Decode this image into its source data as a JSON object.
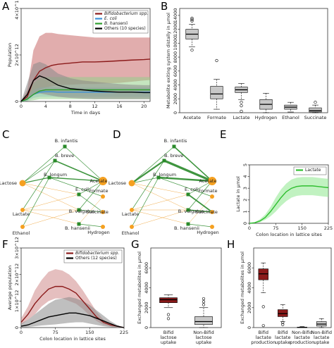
{
  "figure_title": "",
  "chart_data": [
    {
      "id": "A",
      "type": "line",
      "panel_label": "A",
      "xlabel": "Time in days",
      "ylabel": "Population",
      "xlim": [
        0,
        21
      ],
      "ylim": [
        0,
        4000000000000.0
      ],
      "ytick_values": [
        0,
        2000000000000.0,
        4000000000000.0
      ],
      "xticks": [
        "0",
        "4",
        "8",
        "12",
        "16",
        "20"
      ],
      "yticks": [
        "0",
        "2×10^12",
        "4×10^12"
      ],
      "legend": [
        "Bifidobacterium spp.",
        "E. coli",
        "B. hansenii",
        "Others (10 species)"
      ],
      "legend_position": "top-right",
      "colors": [
        "#8b1a1a",
        "#3b8fd8",
        "#2e9e2e",
        "#000000"
      ],
      "band_colors": [
        "#c96a6a",
        "#9ec9ef",
        "#96d08a",
        "#8a8a8a"
      ],
      "x": [
        0,
        1,
        2,
        3,
        4,
        5,
        6,
        8,
        10,
        12,
        14,
        16,
        18,
        20,
        21
      ],
      "series": [
        {
          "name": "Bifidobacterium spp.",
          "mean": [
            0,
            200000000000.0,
            900000000000.0,
            1300000000000.0,
            1450000000000.0,
            1550000000000.0,
            1600000000000.0,
            1650000000000.0,
            1700000000000.0,
            1700000000000.0,
            1720000000000.0,
            1750000000000.0,
            1780000000000.0,
            1800000000000.0,
            1820000000000.0
          ],
          "low": [
            0,
            50000000000.0,
            300000000000.0,
            500000000000.0,
            600000000000.0,
            650000000000.0,
            700000000000.0,
            720000000000.0,
            750000000000.0,
            750000000000.0,
            780000000000.0,
            800000000000.0,
            850000000000.0,
            900000000000.0,
            920000000000.0
          ],
          "high": [
            0,
            500000000000.0,
            2200000000000.0,
            2800000000000.0,
            2950000000000.0,
            2950000000000.0,
            2900000000000.0,
            2850000000000.0,
            2800000000000.0,
            2750000000000.0,
            2750000000000.0,
            2750000000000.0,
            2750000000000.0,
            2750000000000.0,
            2750000000000.0
          ]
        },
        {
          "name": "E. coli",
          "mean": [
            0,
            100000000000.0,
            300000000000.0,
            400000000000.0,
            420000000000.0,
            420000000000.0,
            400000000000.0,
            400000000000.0,
            400000000000.0,
            400000000000.0,
            400000000000.0,
            400000000000.0,
            400000000000.0,
            400000000000.0,
            400000000000.0
          ],
          "low": [
            0,
            20000000000.0,
            150000000000.0,
            200000000000.0,
            200000000000.0,
            200000000000.0,
            200000000000.0,
            200000000000.0,
            200000000000.0,
            200000000000.0,
            200000000000.0,
            200000000000.0,
            200000000000.0,
            200000000000.0,
            200000000000.0
          ],
          "high": [
            0,
            200000000000.0,
            500000000000.0,
            600000000000.0,
            620000000000.0,
            620000000000.0,
            600000000000.0,
            600000000000.0,
            600000000000.0,
            600000000000.0,
            600000000000.0,
            600000000000.0,
            600000000000.0,
            600000000000.0,
            600000000000.0
          ]
        },
        {
          "name": "B. hansenii",
          "mean": [
            0,
            100000000000.0,
            300000000000.0,
            450000000000.0,
            500000000000.0,
            500000000000.0,
            500000000000.0,
            500000000000.0,
            500000000000.0,
            500000000000.0,
            500000000000.0,
            500000000000.0,
            500000000000.0,
            500000000000.0,
            500000000000.0
          ],
          "low": [
            0,
            20000000000.0,
            50000000000.0,
            100000000000.0,
            100000000000.0,
            100000000000.0,
            100000000000.0,
            100000000000.0,
            100000000000.0,
            100000000000.0,
            100000000000.0,
            100000000000.0,
            100000000000.0,
            100000000000.0,
            100000000000.0
          ],
          "high": [
            0,
            300000000000.0,
            800000000000.0,
            1000000000000.0,
            1050000000000.0,
            1050000000000.0,
            1050000000000.0,
            1050000000000.0,
            1050000000000.0,
            1050000000000.0,
            1050000000000.0,
            1050000000000.0,
            1050000000000.0,
            1050000000000.0,
            1050000000000.0
          ]
        },
        {
          "name": "Others (10 species)",
          "mean": [
            0,
            300000000000.0,
            900000000000.0,
            1100000000000.0,
            1000000000000.0,
            850000000000.0,
            700000000000.0,
            550000000000.0,
            500000000000.0,
            450000000000.0,
            420000000000.0,
            400000000000.0,
            400000000000.0,
            380000000000.0,
            380000000000.0
          ],
          "low": [
            0,
            100000000000.0,
            300000000000.0,
            350000000000.0,
            300000000000.0,
            250000000000.0,
            200000000000.0,
            150000000000.0,
            120000000000.0,
            100000000000.0,
            100000000000.0,
            100000000000.0,
            100000000000.0,
            100000000000.0,
            100000000000.0
          ],
          "high": [
            0,
            800000000000.0,
            1600000000000.0,
            1700000000000.0,
            1600000000000.0,
            1400000000000.0,
            1200000000000.0,
            1000000000000.0,
            900000000000.0,
            850000000000.0,
            800000000000.0,
            750000000000.0,
            720000000000.0,
            700000000000.0,
            700000000000.0
          ]
        }
      ]
    },
    {
      "id": "B",
      "type": "box",
      "panel_label": "B",
      "ylabel": "Metabolite exiting system distally in μmol",
      "ylim": [
        0,
        15000
      ],
      "yticks": [
        0,
        2000,
        4000,
        6000,
        8000,
        10000,
        12000,
        14000
      ],
      "categories": [
        "Acetate",
        "Formate",
        "Lactate",
        "Hydrogen",
        "Ethanol",
        "Succinate"
      ],
      "boxes": [
        {
          "min": 9500,
          "q1": 10600,
          "median": 11300,
          "q3": 12000,
          "max": 12700,
          "outliers": [
            13600,
            13400,
            13200,
            9000
          ]
        },
        {
          "min": 500,
          "q1": 2000,
          "median": 2700,
          "q3": 3800,
          "max": 4800,
          "outliers": [
            7500
          ]
        },
        {
          "min": 1900,
          "q1": 2900,
          "median": 3300,
          "q3": 3700,
          "max": 4200,
          "outliers": [
            1500,
            1000,
            200
          ]
        },
        {
          "min": 0,
          "q1": 500,
          "median": 1200,
          "q3": 1900,
          "max": 2800,
          "outliers": []
        },
        {
          "min": 100,
          "q1": 500,
          "median": 800,
          "q3": 1100,
          "max": 1500,
          "outliers": []
        },
        {
          "min": 0,
          "q1": 100,
          "median": 300,
          "q3": 700,
          "max": 1100,
          "outliers": [
            1500
          ]
        }
      ],
      "box_color": "#c8c8c8"
    },
    {
      "id": "C",
      "type": "network",
      "panel_label": "C",
      "nodes": [
        "B. infantis",
        "B. breve",
        "B. longum",
        "Lactose",
        "Acetate",
        "Formate",
        "E. coli",
        "Lactate",
        "B. vulgatus",
        "Succinate",
        "Ethanol",
        "B. hansenii",
        "Hydrogen"
      ],
      "species_color": "#2a8a2a",
      "metabolite_color": "#f0a030"
    },
    {
      "id": "D",
      "type": "network",
      "panel_label": "D",
      "nodes": [
        "B. infantis",
        "B. breve",
        "B. longum",
        "Lactose",
        "Acetate",
        "Formate",
        "E. coli",
        "Lactate",
        "B. vulgatus",
        "Succinate",
        "Ethanol",
        "B. hansenii",
        "Hydrogen"
      ]
    },
    {
      "id": "E",
      "type": "line",
      "panel_label": "E",
      "xlabel": "Colon location in lattice sites",
      "ylabel": "Lactate in μmol",
      "xlim": [
        0,
        225
      ],
      "ylim": [
        0,
        5
      ],
      "xticks": [
        0,
        75,
        150,
        225
      ],
      "yticks": [
        0,
        1,
        2,
        3,
        4,
        5
      ],
      "legend": [
        "Lactate"
      ],
      "legend_position": "top-right",
      "color": "#2fbf2f",
      "band_color": "#8ee88e",
      "x": [
        0,
        15,
        30,
        45,
        60,
        75,
        90,
        105,
        120,
        135,
        150,
        165,
        180,
        195,
        210,
        225
      ],
      "mean": [
        0,
        0.05,
        0.2,
        0.5,
        1.0,
        1.6,
        2.2,
        2.7,
        3.0,
        3.15,
        3.2,
        3.2,
        3.2,
        3.15,
        3.1,
        3.05
      ],
      "low": [
        0,
        0.02,
        0.1,
        0.3,
        0.6,
        1.0,
        1.5,
        1.9,
        2.2,
        2.35,
        2.4,
        2.4,
        2.4,
        2.35,
        2.3,
        2.25
      ],
      "high": [
        0,
        0.1,
        0.35,
        0.75,
        1.4,
        2.2,
        2.9,
        3.4,
        3.75,
        3.9,
        3.95,
        3.95,
        3.95,
        3.9,
        3.85,
        3.8
      ]
    },
    {
      "id": "F",
      "type": "line",
      "panel_label": "F",
      "xlabel": "Colon location in lattice sites",
      "ylabel": "Average population",
      "xlim": [
        0,
        225
      ],
      "ylim": [
        0,
        3000000000000.0
      ],
      "xticks": [
        0,
        75,
        150,
        225
      ],
      "yticks": [
        "0",
        "1×10^12",
        "2×10^12",
        "3×10^12"
      ],
      "ytick_values": [
        0,
        1000000000000.0,
        2000000000000.0,
        3000000000000.0
      ],
      "legend": [
        "Bifidobacterium spp.",
        "Others (12 species)"
      ],
      "legend_position": "top-right",
      "colors": [
        "#8b1a1a",
        "#000000"
      ],
      "band_colors": [
        "#d08a8a",
        "#8a8a8a"
      ],
      "x": [
        0,
        15,
        30,
        45,
        60,
        75,
        90,
        105,
        120,
        135,
        150,
        165,
        180,
        195,
        210,
        225
      ],
      "series": [
        {
          "name": "Bifidobacterium spp.",
          "mean": [
            200000000000.0,
            500000000000.0,
            900000000000.0,
            1200000000000.0,
            1450000000000.0,
            1550000000000.0,
            1550000000000.0,
            1450000000000.0,
            1300000000000.0,
            1000000000000.0,
            700000000000.0,
            400000000000.0,
            200000000000.0,
            100000000000.0,
            50000000000.0,
            0
          ],
          "low": [
            100000000000.0,
            300000000000.0,
            500000000000.0,
            800000000000.0,
            1000000000000.0,
            1100000000000.0,
            1100000000000.0,
            1000000000000.0,
            900000000000.0,
            700000000000.0,
            450000000000.0,
            250000000000.0,
            100000000000.0,
            50000000000.0,
            0,
            0
          ],
          "high": [
            350000000000.0,
            800000000000.0,
            1400000000000.0,
            1800000000000.0,
            2100000000000.0,
            2200000000000.0,
            2150000000000.0,
            2000000000000.0,
            1750000000000.0,
            1400000000000.0,
            1000000000000.0,
            600000000000.0,
            300000000000.0,
            150000000000.0,
            50000000000.0,
            0
          ]
        },
        {
          "name": "Others (12 species)",
          "mean": [
            50000000000.0,
            100000000000.0,
            200000000000.0,
            300000000000.0,
            400000000000.0,
            450000000000.0,
            500000000000.0,
            550000000000.0,
            550000000000.0,
            500000000000.0,
            450000000000.0,
            350000000000.0,
            250000000000.0,
            150000000000.0,
            50000000000.0,
            0
          ],
          "low": [
            0,
            20000000000.0,
            50000000000.0,
            80000000000.0,
            100000000000.0,
            120000000000.0,
            150000000000.0,
            180000000000.0,
            200000000000.0,
            200000000000.0,
            150000000000.0,
            100000000000.0,
            50000000000.0,
            20000000000.0,
            0,
            0
          ],
          "high": [
            150000000000.0,
            300000000000.0,
            500000000000.0,
            700000000000.0,
            900000000000.0,
            1050000000000.0,
            1100000000000.0,
            1150000000000.0,
            1100000000000.0,
            1000000000000.0,
            850000000000.0,
            650000000000.0,
            450000000000.0,
            250000000000.0,
            100000000000.0,
            0
          ]
        }
      ]
    },
    {
      "id": "G",
      "type": "box",
      "panel_label": "G",
      "ylabel": "Exchanged metabolites in μmol",
      "ylim": [
        0,
        8000
      ],
      "yticks": [
        0,
        2000,
        4000,
        6000
      ],
      "categories": [
        "Bifid lactose uptake",
        "Non-Bifid lactose uptake"
      ],
      "boxes": [
        {
          "min": 2000,
          "q1": 2500,
          "median": 2800,
          "q3": 3000,
          "max": 3300,
          "outliers": [
            1300,
            900
          ]
        },
        {
          "min": 0,
          "q1": 300,
          "median": 600,
          "q3": 1100,
          "max": 2000,
          "outliers": [
            2900,
            2600,
            2300
          ]
        }
      ],
      "colors": [
        "#8b1a1a",
        "#c8c8c8"
      ]
    },
    {
      "id": "H",
      "type": "box",
      "panel_label": "H",
      "ylabel": "Exchanged metabolites in μmol",
      "ylim": [
        0,
        8000
      ],
      "yticks": [
        0,
        2000,
        4000,
        6000
      ],
      "categories": [
        "Bifid lactate production",
        "Bifid lactate uptake",
        "Non-Bifid lactate production",
        "Non-Bifid lactate uptake"
      ],
      "boxes": [
        {
          "min": 3500,
          "q1": 4800,
          "median": 5400,
          "q3": 5900,
          "max": 6500,
          "outliers": [
            2100,
            200
          ]
        },
        {
          "min": 600,
          "q1": 1100,
          "median": 1400,
          "q3": 1800,
          "max": 2300,
          "outliers": [
            500,
            300
          ]
        },
        {
          "min": 0,
          "q1": 0,
          "median": 20,
          "q3": 50,
          "max": 100,
          "outliers": []
        },
        {
          "min": 0,
          "q1": 150,
          "median": 350,
          "q3": 600,
          "max": 900,
          "outliers": []
        }
      ],
      "colors": [
        "#8b1a1a",
        "#8b1a1a",
        "#c8c8c8",
        "#c8c8c8"
      ]
    }
  ]
}
